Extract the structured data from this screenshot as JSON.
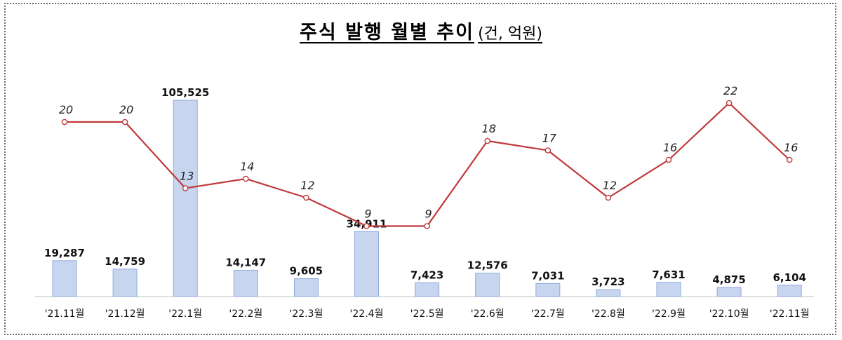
{
  "title": {
    "main": "주식 발행 월별 추이",
    "unit": "(건, 억원)"
  },
  "chart_data": {
    "type": "bar",
    "title": "주식 발행 월별 추이 (건, 억원)",
    "categories": [
      "'21.11월",
      "'21.12월",
      "'22.1월",
      "'22.2월",
      "'22.3월",
      "'22.4월",
      "'22.5월",
      "'22.6월",
      "'22.7월",
      "'22.8월",
      "'22.9월",
      "'22.10월",
      "'22.11월"
    ],
    "series": [
      {
        "type": "bar",
        "values": [
          19287,
          14759,
          105525,
          14147,
          9605,
          34911,
          7423,
          12576,
          7031,
          3723,
          7631,
          4875,
          6104
        ],
        "labels": [
          "19,287",
          "14,759",
          "105,525",
          "14,147",
          "9,605",
          "34,911",
          "7,423",
          "12,576",
          "7,031",
          "3,723",
          "7,631",
          "4,875",
          "6,104"
        ],
        "color": "#c7d5ee",
        "border_color": "#8eaadb"
      },
      {
        "type": "line",
        "values": [
          20,
          20,
          13,
          14,
          12,
          9,
          9,
          18,
          17,
          12,
          16,
          22,
          16
        ],
        "labels": [
          "20",
          "20",
          "13",
          "14",
          "12",
          "9",
          "9",
          "18",
          "17",
          "12",
          "16",
          "22",
          "16"
        ],
        "color": "#c0393b"
      }
    ],
    "grid": false,
    "legend": "none"
  }
}
